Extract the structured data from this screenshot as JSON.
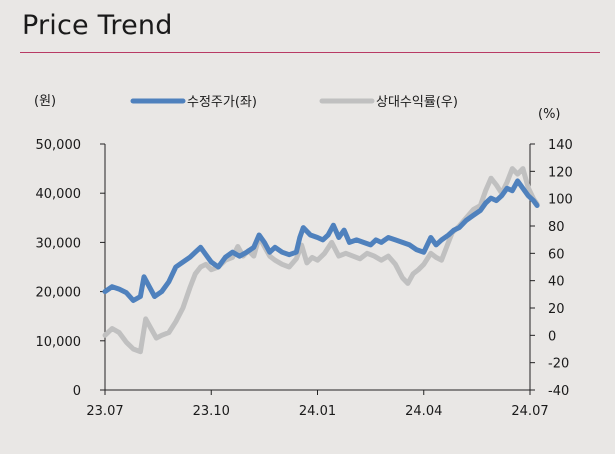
{
  "page": {
    "title": "Price Trend"
  },
  "chart_data": {
    "type": "line",
    "title": "Price Trend",
    "y_left_unit": "(원)",
    "y_right_unit": "(%)",
    "y_left_range": [
      0,
      50000
    ],
    "y_right_range": [
      -40,
      140
    ],
    "y_left_ticks": [
      "0",
      "10,000",
      "20,000",
      "30,000",
      "40,000",
      "50,000"
    ],
    "y_right_ticks": [
      "-40",
      "-20",
      "0",
      "20",
      "40",
      "60",
      "80",
      "100",
      "120",
      "140"
    ],
    "x_tick_labels": [
      "23.07",
      "23.10",
      "24.01",
      "24.04",
      "24.07"
    ],
    "x_ticks_at": [
      0,
      3,
      6,
      9,
      12
    ],
    "x_range": [
      0,
      12
    ],
    "x_unit_note": "months since 23.07",
    "grid": false,
    "legend_position": "top",
    "series": [
      {
        "name": "수정주가(좌)",
        "axis": "left",
        "color": "#4f81bd",
        "points": [
          [
            0.0,
            20000
          ],
          [
            0.2,
            21000
          ],
          [
            0.4,
            20500
          ],
          [
            0.6,
            19800
          ],
          [
            0.8,
            18200
          ],
          [
            1.0,
            19000
          ],
          [
            1.1,
            23000
          ],
          [
            1.25,
            21000
          ],
          [
            1.4,
            19000
          ],
          [
            1.6,
            20000
          ],
          [
            1.8,
            22000
          ],
          [
            2.0,
            25000
          ],
          [
            2.2,
            26000
          ],
          [
            2.4,
            27000
          ],
          [
            2.55,
            28000
          ],
          [
            2.7,
            29000
          ],
          [
            2.85,
            27500
          ],
          [
            3.0,
            26000
          ],
          [
            3.2,
            25000
          ],
          [
            3.4,
            27000
          ],
          [
            3.6,
            28000
          ],
          [
            3.8,
            27200
          ],
          [
            4.0,
            28000
          ],
          [
            4.2,
            29000
          ],
          [
            4.35,
            31500
          ],
          [
            4.5,
            30000
          ],
          [
            4.65,
            28000
          ],
          [
            4.8,
            29000
          ],
          [
            5.0,
            28000
          ],
          [
            5.2,
            27500
          ],
          [
            5.4,
            28000
          ],
          [
            5.5,
            31000
          ],
          [
            5.6,
            33000
          ],
          [
            5.8,
            31500
          ],
          [
            6.0,
            31000
          ],
          [
            6.15,
            30500
          ],
          [
            6.3,
            31500
          ],
          [
            6.45,
            33500
          ],
          [
            6.6,
            31000
          ],
          [
            6.75,
            32500
          ],
          [
            6.9,
            30000
          ],
          [
            7.1,
            30500
          ],
          [
            7.3,
            30000
          ],
          [
            7.5,
            29500
          ],
          [
            7.65,
            30500
          ],
          [
            7.8,
            30000
          ],
          [
            8.0,
            31000
          ],
          [
            8.2,
            30500
          ],
          [
            8.4,
            30000
          ],
          [
            8.6,
            29500
          ],
          [
            8.8,
            28500
          ],
          [
            9.0,
            28000
          ],
          [
            9.2,
            31000
          ],
          [
            9.35,
            29500
          ],
          [
            9.5,
            30500
          ],
          [
            9.7,
            31500
          ],
          [
            9.85,
            32500
          ],
          [
            10.0,
            33000
          ],
          [
            10.2,
            34500
          ],
          [
            10.4,
            35500
          ],
          [
            10.6,
            36500
          ],
          [
            10.75,
            38000
          ],
          [
            10.9,
            39000
          ],
          [
            11.05,
            38500
          ],
          [
            11.2,
            39500
          ],
          [
            11.35,
            41000
          ],
          [
            11.5,
            40500
          ],
          [
            11.65,
            42500
          ],
          [
            11.8,
            41000
          ],
          [
            11.95,
            39500
          ],
          [
            12.1,
            38500
          ],
          [
            12.2,
            37500
          ]
        ]
      },
      {
        "name": "상대수익률(우)",
        "axis": "right",
        "color": "#c0c0c0",
        "points": [
          [
            0.0,
            0
          ],
          [
            0.2,
            5
          ],
          [
            0.4,
            2
          ],
          [
            0.6,
            -5
          ],
          [
            0.8,
            -10
          ],
          [
            1.0,
            -12
          ],
          [
            1.15,
            12
          ],
          [
            1.3,
            5
          ],
          [
            1.45,
            -2
          ],
          [
            1.6,
            0
          ],
          [
            1.8,
            2
          ],
          [
            2.0,
            10
          ],
          [
            2.2,
            20
          ],
          [
            2.4,
            35
          ],
          [
            2.55,
            45
          ],
          [
            2.7,
            50
          ],
          [
            2.85,
            52
          ],
          [
            3.0,
            48
          ],
          [
            3.2,
            50
          ],
          [
            3.4,
            55
          ],
          [
            3.6,
            57
          ],
          [
            3.75,
            65
          ],
          [
            3.9,
            58
          ],
          [
            4.05,
            62
          ],
          [
            4.2,
            58
          ],
          [
            4.35,
            72
          ],
          [
            4.5,
            65
          ],
          [
            4.65,
            58
          ],
          [
            4.8,
            55
          ],
          [
            5.0,
            52
          ],
          [
            5.2,
            50
          ],
          [
            5.4,
            56
          ],
          [
            5.55,
            66
          ],
          [
            5.7,
            53
          ],
          [
            5.85,
            57
          ],
          [
            6.0,
            55
          ],
          [
            6.2,
            60
          ],
          [
            6.4,
            68
          ],
          [
            6.6,
            58
          ],
          [
            6.8,
            60
          ],
          [
            7.0,
            58
          ],
          [
            7.2,
            56
          ],
          [
            7.4,
            60
          ],
          [
            7.6,
            58
          ],
          [
            7.8,
            55
          ],
          [
            8.0,
            58
          ],
          [
            8.2,
            52
          ],
          [
            8.4,
            42
          ],
          [
            8.55,
            38
          ],
          [
            8.7,
            45
          ],
          [
            8.85,
            48
          ],
          [
            9.0,
            52
          ],
          [
            9.2,
            60
          ],
          [
            9.35,
            57
          ],
          [
            9.5,
            55
          ],
          [
            9.65,
            65
          ],
          [
            9.8,
            75
          ],
          [
            10.0,
            80
          ],
          [
            10.2,
            86
          ],
          [
            10.4,
            92
          ],
          [
            10.6,
            95
          ],
          [
            10.75,
            106
          ],
          [
            10.9,
            115
          ],
          [
            11.05,
            110
          ],
          [
            11.2,
            104
          ],
          [
            11.35,
            112
          ],
          [
            11.5,
            122
          ],
          [
            11.65,
            118
          ],
          [
            11.8,
            122
          ],
          [
            11.95,
            108
          ],
          [
            12.1,
            100
          ],
          [
            12.2,
            96
          ]
        ]
      }
    ]
  }
}
